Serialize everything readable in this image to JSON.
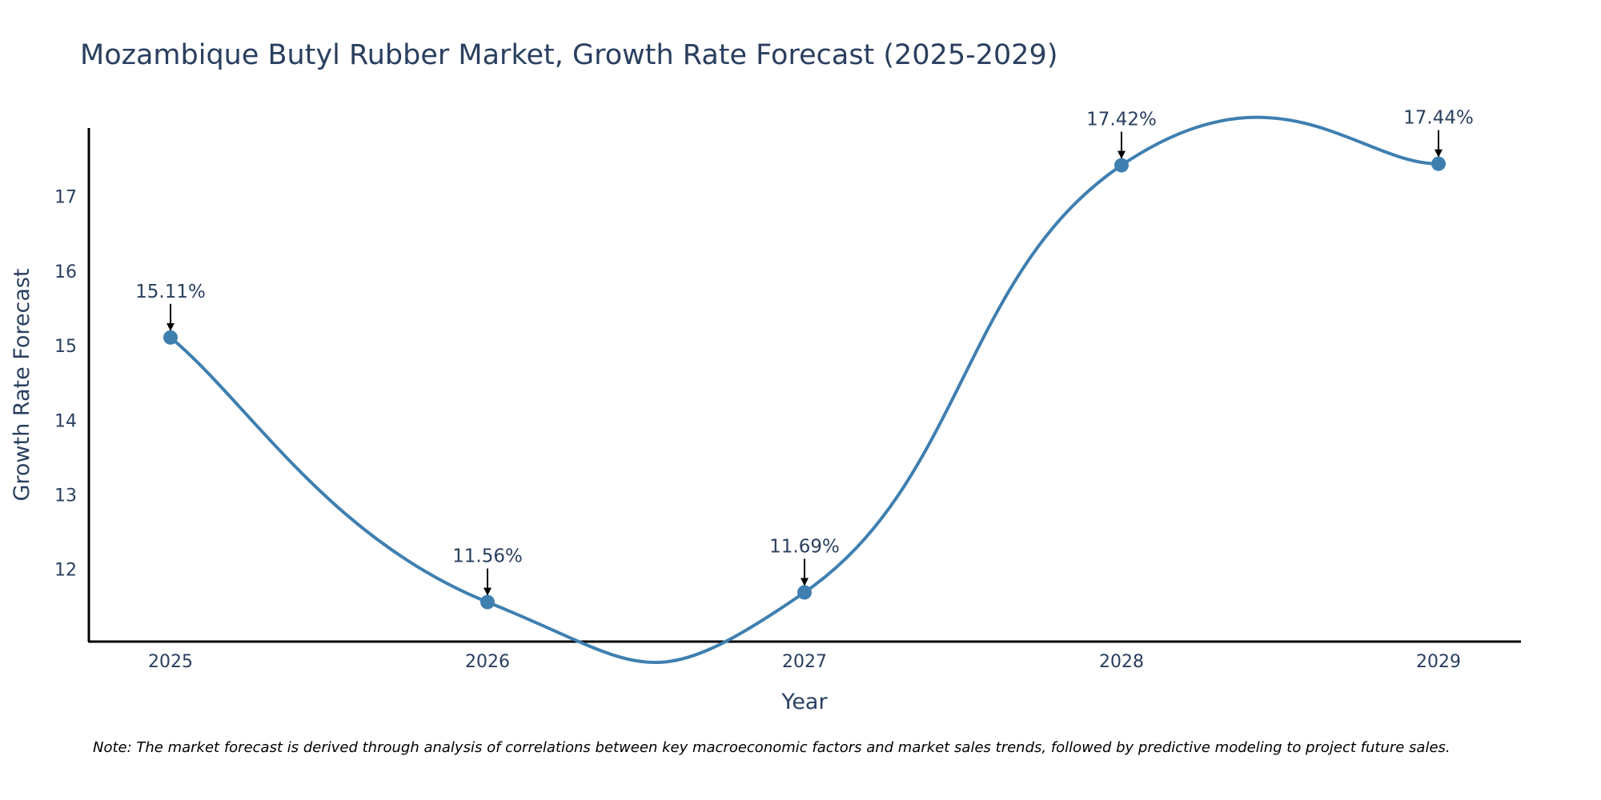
{
  "colors": {
    "line": "#3f7fb0",
    "text": "#2a3f5f",
    "axis": "#000000",
    "background": "#ffffff"
  },
  "chart_data": {
    "type": "line",
    "title": "Mozambique Butyl Rubber Market, Growth Rate Forecast (2025-2029)",
    "xlabel": "Year",
    "ylabel": "Growth Rate Forecast",
    "categories": [
      "2025",
      "2026",
      "2027",
      "2028",
      "2029"
    ],
    "series": [
      {
        "name": "Growth Rate Forecast",
        "values": [
          15.11,
          11.56,
          11.69,
          17.42,
          17.44
        ]
      }
    ],
    "data_labels": [
      "15.11%",
      "11.56%",
      "11.69%",
      "17.42%",
      "17.44%"
    ],
    "y_ticks": [
      "12",
      "13",
      "14",
      "15",
      "16",
      "17"
    ],
    "ylim": [
      11.03,
      17.92
    ],
    "smoothing": "spline",
    "grid": false,
    "note": "Note: The market forecast is derived through analysis of correlations between key macroeconomic factors and market sales trends, followed by predictive modeling to project future sales."
  }
}
